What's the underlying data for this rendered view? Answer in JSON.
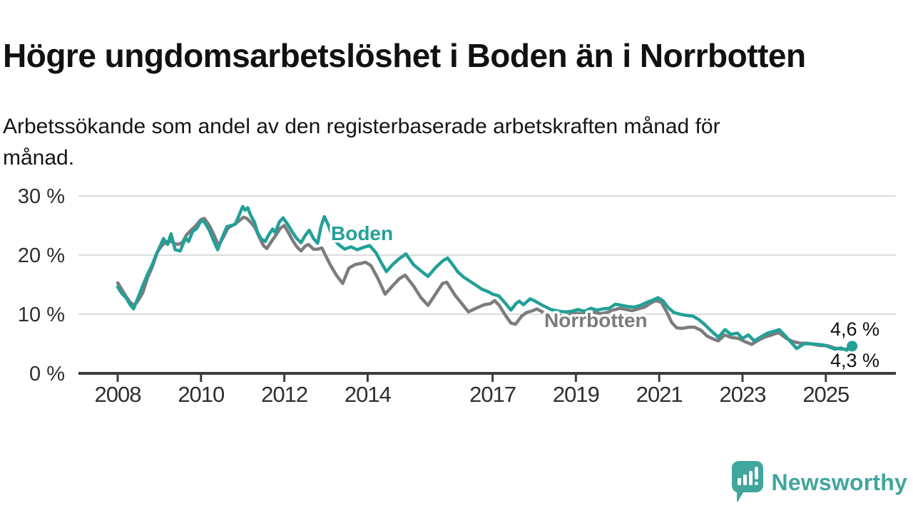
{
  "header": {
    "title": "Högre ungdomsarbetslöshet i Boden än i Norrbotten",
    "subtitle": "Arbetssökande som andel av den registerbaserade arbetskraften månad för månad."
  },
  "footer": {
    "brand": "Newsworthy"
  },
  "colors": {
    "boden": "#22a098",
    "norrbotten": "#7c7c7c",
    "gridline": "#dbdbdb",
    "axis": "#3c3c3c",
    "tick_label": "#2e2e2e",
    "value_label": "#111111",
    "logo": "#41a69e"
  },
  "chart_data": {
    "type": "line",
    "title": "Högre ungdomsarbetslöshet i Boden än i Norrbotten",
    "subtitle": "Arbetssökande som andel av den registerbaserade arbetskraften månad för månad.",
    "unit": "%",
    "x_axis": {
      "ticks": [
        2008,
        2010,
        2012,
        2014,
        2017,
        2019,
        2021,
        2023,
        2025
      ],
      "range": [
        2007.9,
        2026.0
      ]
    },
    "y_axis": {
      "ticks": [
        0,
        10,
        20,
        30
      ],
      "tick_suffix": " %",
      "range": [
        0,
        30
      ],
      "gridlines": [
        10,
        20,
        30
      ]
    },
    "legend_position": "inline-labels",
    "series": [
      {
        "name": "Boden",
        "color": "#22a098",
        "end_label": "4,6 %",
        "end_dot": true,
        "points": [
          [
            2008.0,
            14.6
          ],
          [
            2008.1,
            13.5
          ],
          [
            2008.2,
            12.8
          ],
          [
            2008.3,
            11.6
          ],
          [
            2008.38,
            10.9
          ],
          [
            2008.5,
            13.0
          ],
          [
            2008.6,
            14.8
          ],
          [
            2008.72,
            16.8
          ],
          [
            2008.83,
            18.4
          ],
          [
            2008.92,
            20.0
          ],
          [
            2009.03,
            21.7
          ],
          [
            2009.1,
            22.8
          ],
          [
            2009.2,
            21.8
          ],
          [
            2009.28,
            23.6
          ],
          [
            2009.38,
            20.9
          ],
          [
            2009.5,
            20.7
          ],
          [
            2009.63,
            22.9
          ],
          [
            2009.7,
            22.3
          ],
          [
            2009.8,
            24.0
          ],
          [
            2009.9,
            24.5
          ],
          [
            2010.0,
            25.8
          ],
          [
            2010.08,
            25.6
          ],
          [
            2010.2,
            24.2
          ],
          [
            2010.3,
            22.5
          ],
          [
            2010.4,
            20.9
          ],
          [
            2010.5,
            22.8
          ],
          [
            2010.62,
            24.8
          ],
          [
            2010.72,
            25.0
          ],
          [
            2010.82,
            25.2
          ],
          [
            2010.9,
            26.5
          ],
          [
            2011.0,
            28.2
          ],
          [
            2011.06,
            27.6
          ],
          [
            2011.12,
            28.0
          ],
          [
            2011.2,
            26.6
          ],
          [
            2011.28,
            25.6
          ],
          [
            2011.36,
            23.8
          ],
          [
            2011.44,
            22.8
          ],
          [
            2011.54,
            22.3
          ],
          [
            2011.64,
            23.6
          ],
          [
            2011.72,
            24.4
          ],
          [
            2011.78,
            23.8
          ],
          [
            2011.88,
            25.6
          ],
          [
            2011.97,
            26.3
          ],
          [
            2012.08,
            25.2
          ],
          [
            2012.2,
            23.8
          ],
          [
            2012.3,
            22.8
          ],
          [
            2012.4,
            22.1
          ],
          [
            2012.5,
            23.3
          ],
          [
            2012.6,
            24.2
          ],
          [
            2012.7,
            22.8
          ],
          [
            2012.8,
            22.0
          ],
          [
            2012.88,
            24.8
          ],
          [
            2012.96,
            26.5
          ],
          [
            2013.06,
            25.0
          ],
          [
            2013.16,
            23.0
          ],
          [
            2013.3,
            21.8
          ],
          [
            2013.45,
            21.0
          ],
          [
            2013.6,
            21.4
          ],
          [
            2013.75,
            20.9
          ],
          [
            2013.9,
            21.3
          ],
          [
            2014.05,
            21.6
          ],
          [
            2014.2,
            20.4
          ],
          [
            2014.32,
            18.8
          ],
          [
            2014.45,
            17.2
          ],
          [
            2014.6,
            18.4
          ],
          [
            2014.76,
            19.4
          ],
          [
            2014.92,
            20.2
          ],
          [
            2015.1,
            18.4
          ],
          [
            2015.3,
            17.2
          ],
          [
            2015.45,
            16.4
          ],
          [
            2015.62,
            17.8
          ],
          [
            2015.8,
            19.0
          ],
          [
            2015.92,
            19.5
          ],
          [
            2016.05,
            18.3
          ],
          [
            2016.16,
            17.2
          ],
          [
            2016.3,
            16.3
          ],
          [
            2016.45,
            15.6
          ],
          [
            2016.6,
            14.9
          ],
          [
            2016.75,
            14.2
          ],
          [
            2016.9,
            13.8
          ],
          [
            2017.0,
            13.4
          ],
          [
            2017.15,
            13.1
          ],
          [
            2017.3,
            11.9
          ],
          [
            2017.44,
            10.7
          ],
          [
            2017.56,
            11.8
          ],
          [
            2017.64,
            12.2
          ],
          [
            2017.74,
            11.6
          ],
          [
            2017.9,
            12.6
          ],
          [
            2018.02,
            12.2
          ],
          [
            2018.2,
            11.5
          ],
          [
            2018.4,
            10.8
          ],
          [
            2018.6,
            10.5
          ],
          [
            2018.76,
            10.4
          ],
          [
            2018.9,
            10.5
          ],
          [
            2019.05,
            10.8
          ],
          [
            2019.2,
            10.5
          ],
          [
            2019.36,
            11.0
          ],
          [
            2019.5,
            10.7
          ],
          [
            2019.65,
            10.9
          ],
          [
            2019.8,
            11.0
          ],
          [
            2019.95,
            11.7
          ],
          [
            2020.1,
            11.5
          ],
          [
            2020.25,
            11.3
          ],
          [
            2020.4,
            11.2
          ],
          [
            2020.55,
            11.5
          ],
          [
            2020.7,
            12.0
          ],
          [
            2020.85,
            12.4
          ],
          [
            2020.97,
            12.8
          ],
          [
            2021.1,
            12.2
          ],
          [
            2021.22,
            11.1
          ],
          [
            2021.35,
            10.3
          ],
          [
            2021.5,
            10.0
          ],
          [
            2021.65,
            9.8
          ],
          [
            2021.8,
            9.7
          ],
          [
            2021.95,
            9.1
          ],
          [
            2022.1,
            8.2
          ],
          [
            2022.26,
            7.1
          ],
          [
            2022.42,
            6.1
          ],
          [
            2022.58,
            7.4
          ],
          [
            2022.72,
            6.6
          ],
          [
            2022.88,
            6.8
          ],
          [
            2023.0,
            5.9
          ],
          [
            2023.14,
            6.5
          ],
          [
            2023.28,
            5.5
          ],
          [
            2023.45,
            6.2
          ],
          [
            2023.6,
            6.8
          ],
          [
            2023.75,
            7.1
          ],
          [
            2023.88,
            7.4
          ],
          [
            2024.02,
            6.4
          ],
          [
            2024.16,
            5.3
          ],
          [
            2024.3,
            4.2
          ],
          [
            2024.48,
            5.0
          ],
          [
            2024.65,
            5.0
          ],
          [
            2024.8,
            4.9
          ],
          [
            2024.95,
            4.8
          ],
          [
            2025.1,
            4.4
          ],
          [
            2025.22,
            4.1
          ],
          [
            2025.36,
            4.3
          ],
          [
            2025.5,
            3.9
          ],
          [
            2025.63,
            4.6
          ]
        ]
      },
      {
        "name": "Norrbotten",
        "color": "#7c7c7c",
        "end_label": "4,3 %",
        "end_dot": false,
        "points": [
          [
            2008.0,
            15.3
          ],
          [
            2008.1,
            14.2
          ],
          [
            2008.2,
            13.0
          ],
          [
            2008.3,
            12.0
          ],
          [
            2008.4,
            11.5
          ],
          [
            2008.5,
            12.4
          ],
          [
            2008.6,
            13.6
          ],
          [
            2008.72,
            16.2
          ],
          [
            2008.83,
            18.0
          ],
          [
            2008.95,
            20.5
          ],
          [
            2009.05,
            21.5
          ],
          [
            2009.15,
            22.2
          ],
          [
            2009.25,
            22.4
          ],
          [
            2009.35,
            22.0
          ],
          [
            2009.45,
            21.8
          ],
          [
            2009.55,
            22.1
          ],
          [
            2009.65,
            23.4
          ],
          [
            2009.76,
            24.2
          ],
          [
            2009.88,
            25.0
          ],
          [
            2010.0,
            26.0
          ],
          [
            2010.08,
            26.2
          ],
          [
            2010.2,
            25.0
          ],
          [
            2010.3,
            23.6
          ],
          [
            2010.42,
            21.6
          ],
          [
            2010.55,
            23.2
          ],
          [
            2010.65,
            24.6
          ],
          [
            2010.75,
            25.0
          ],
          [
            2010.85,
            25.4
          ],
          [
            2010.95,
            26.0
          ],
          [
            2011.02,
            26.4
          ],
          [
            2011.1,
            26.2
          ],
          [
            2011.2,
            25.5
          ],
          [
            2011.3,
            24.6
          ],
          [
            2011.4,
            23.0
          ],
          [
            2011.5,
            21.6
          ],
          [
            2011.58,
            21.1
          ],
          [
            2011.7,
            22.4
          ],
          [
            2011.8,
            23.4
          ],
          [
            2011.9,
            24.5
          ],
          [
            2012.0,
            25.0
          ],
          [
            2012.1,
            23.8
          ],
          [
            2012.2,
            22.5
          ],
          [
            2012.3,
            21.4
          ],
          [
            2012.4,
            20.7
          ],
          [
            2012.5,
            21.5
          ],
          [
            2012.58,
            21.8
          ],
          [
            2012.7,
            21.0
          ],
          [
            2012.8,
            21.0
          ],
          [
            2012.9,
            21.2
          ],
          [
            2013.0,
            19.8
          ],
          [
            2013.1,
            18.4
          ],
          [
            2013.25,
            16.6
          ],
          [
            2013.4,
            15.2
          ],
          [
            2013.55,
            17.8
          ],
          [
            2013.7,
            18.4
          ],
          [
            2013.85,
            18.6
          ],
          [
            2013.95,
            18.8
          ],
          [
            2014.08,
            18.2
          ],
          [
            2014.25,
            16.0
          ],
          [
            2014.42,
            13.4
          ],
          [
            2014.6,
            14.8
          ],
          [
            2014.76,
            16.0
          ],
          [
            2014.9,
            16.6
          ],
          [
            2015.1,
            14.8
          ],
          [
            2015.28,
            12.8
          ],
          [
            2015.45,
            11.5
          ],
          [
            2015.62,
            13.3
          ],
          [
            2015.8,
            15.2
          ],
          [
            2015.9,
            15.4
          ],
          [
            2016.1,
            13.2
          ],
          [
            2016.26,
            11.8
          ],
          [
            2016.42,
            10.4
          ],
          [
            2016.6,
            11.0
          ],
          [
            2016.8,
            11.6
          ],
          [
            2016.95,
            11.8
          ],
          [
            2017.05,
            12.3
          ],
          [
            2017.16,
            11.5
          ],
          [
            2017.3,
            9.9
          ],
          [
            2017.44,
            8.5
          ],
          [
            2017.55,
            8.3
          ],
          [
            2017.7,
            9.7
          ],
          [
            2017.82,
            10.3
          ],
          [
            2017.97,
            10.6
          ],
          [
            2018.06,
            10.9
          ],
          [
            2018.22,
            10.3
          ],
          [
            2018.4,
            10.0
          ],
          [
            2018.56,
            9.8
          ],
          [
            2018.7,
            9.7
          ],
          [
            2018.85,
            9.9
          ],
          [
            2019.0,
            10.2
          ],
          [
            2019.15,
            10.0
          ],
          [
            2019.3,
            10.2
          ],
          [
            2019.45,
            10.3
          ],
          [
            2019.6,
            10.1
          ],
          [
            2019.75,
            10.3
          ],
          [
            2019.9,
            10.7
          ],
          [
            2020.05,
            11.0
          ],
          [
            2020.2,
            10.8
          ],
          [
            2020.35,
            10.6
          ],
          [
            2020.5,
            10.9
          ],
          [
            2020.65,
            11.2
          ],
          [
            2020.8,
            11.9
          ],
          [
            2020.92,
            12.3
          ],
          [
            2021.05,
            12.0
          ],
          [
            2021.18,
            10.4
          ],
          [
            2021.3,
            8.6
          ],
          [
            2021.42,
            7.7
          ],
          [
            2021.55,
            7.6
          ],
          [
            2021.7,
            7.8
          ],
          [
            2021.85,
            7.8
          ],
          [
            2022.0,
            7.3
          ],
          [
            2022.15,
            6.3
          ],
          [
            2022.3,
            5.8
          ],
          [
            2022.42,
            5.5
          ],
          [
            2022.57,
            6.5
          ],
          [
            2022.72,
            6.1
          ],
          [
            2022.9,
            5.9
          ],
          [
            2023.05,
            5.4
          ],
          [
            2023.22,
            4.9
          ],
          [
            2023.38,
            5.6
          ],
          [
            2023.52,
            6.1
          ],
          [
            2023.7,
            6.5
          ],
          [
            2023.87,
            6.9
          ],
          [
            2024.05,
            5.9
          ],
          [
            2024.2,
            5.4
          ],
          [
            2024.38,
            5.1
          ],
          [
            2024.55,
            5.1
          ],
          [
            2024.7,
            4.9
          ],
          [
            2024.87,
            4.7
          ],
          [
            2025.03,
            4.7
          ],
          [
            2025.2,
            4.3
          ],
          [
            2025.37,
            4.1
          ],
          [
            2025.5,
            4.1
          ],
          [
            2025.63,
            4.3
          ]
        ]
      }
    ],
    "annotations": [
      {
        "text": "Boden",
        "series": "Boden"
      },
      {
        "text": "Norrbotten",
        "series": "Norrbotten"
      }
    ]
  }
}
